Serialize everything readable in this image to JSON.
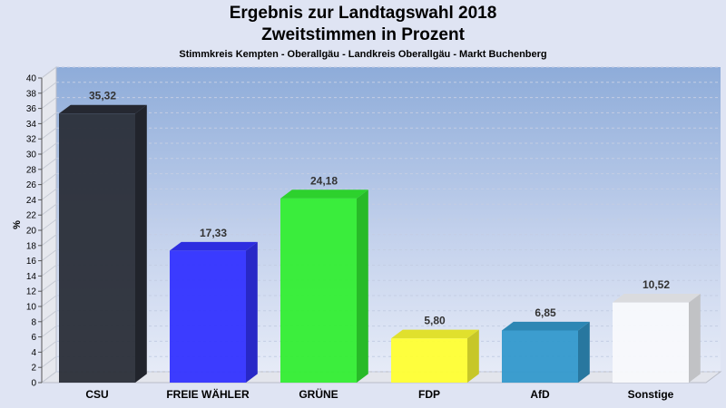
{
  "chart_data": {
    "type": "bar",
    "title": "Ergebnis zur Landtagswahl 2018",
    "subtitle": "Zweitstimmen in Prozent",
    "caption": "Stimmkreis Kempten - Oberallgäu - Landkreis Oberallgäu - Markt Buchenberg",
    "ylabel": "%",
    "xlabel": "",
    "ylim": [
      0,
      40
    ],
    "ytick_step": 2,
    "grid": true,
    "categories": [
      "CSU",
      "FREIE WÄHLER",
      "GRÜNE",
      "FDP",
      "AfD",
      "Sonstige"
    ],
    "values": [
      35.32,
      17.33,
      24.18,
      5.8,
      6.85,
      10.52
    ],
    "value_labels": [
      "35,32",
      "17,33",
      "24,18",
      "5,80",
      "6,85",
      "10,52"
    ],
    "colors": [
      "#2a2e38",
      "#3333ff",
      "#33ee33",
      "#ffff33",
      "#3399cc",
      "#f8f9fc"
    ]
  }
}
